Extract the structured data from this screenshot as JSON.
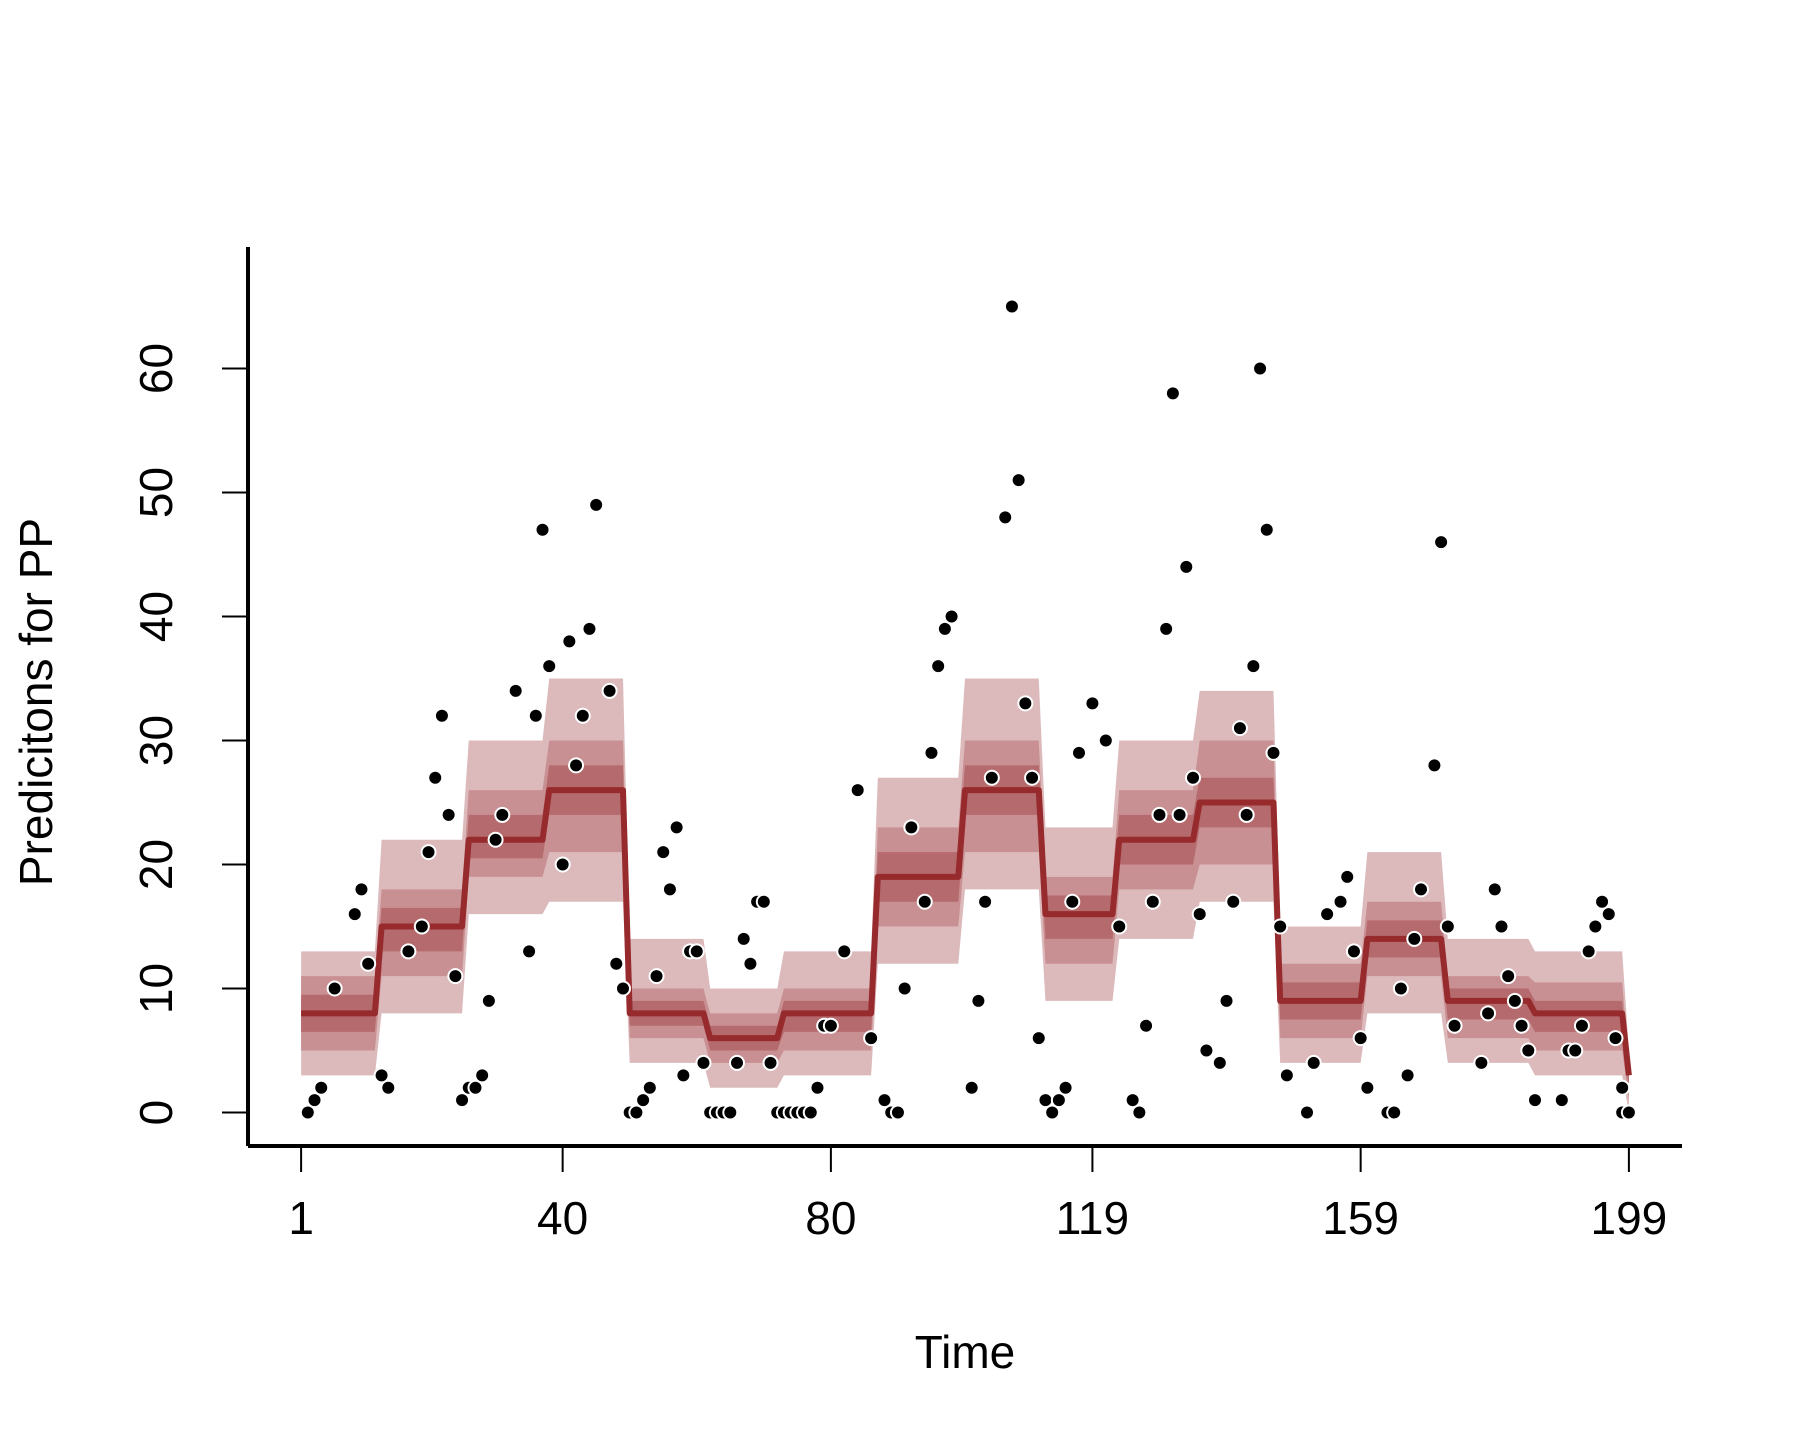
{
  "chart_data": {
    "type": "line",
    "xlabel": "Time",
    "ylabel": "Predicitons for PP",
    "xlim": [
      -6.92,
      206.92
    ],
    "ylim": [
      -2.7,
      69.8
    ],
    "xticks": [
      1,
      40,
      80,
      119,
      159,
      199
    ],
    "yticks": [
      0,
      10,
      20,
      30,
      40,
      50,
      60
    ],
    "line": {
      "color": "#962a2c",
      "x": [
        1,
        12,
        13,
        25,
        26,
        37,
        38,
        49,
        50,
        61,
        62,
        72,
        73,
        86,
        87,
        99,
        100,
        111,
        112,
        122,
        123,
        134,
        135,
        146,
        147,
        159,
        160,
        171,
        172,
        184,
        185,
        198,
        199
      ],
      "values": [
        8,
        8,
        15,
        15,
        22,
        22,
        26,
        26,
        8,
        8,
        6,
        6,
        8,
        8,
        19,
        19,
        26,
        26,
        16,
        16,
        22,
        22,
        25,
        25,
        9,
        9,
        14,
        14,
        9,
        9,
        8,
        8,
        3
      ]
    },
    "bands": [
      {
        "color": "#dcbabc",
        "lower": [
          3,
          3,
          8,
          8,
          16,
          16,
          17,
          17,
          4,
          4,
          2,
          2,
          3,
          3,
          12,
          12,
          18,
          18,
          9,
          9,
          14,
          14,
          17,
          17,
          4,
          4,
          8,
          8,
          4,
          4,
          3,
          3,
          0
        ],
        "upper": [
          13,
          13,
          22,
          22,
          30,
          30,
          35,
          35,
          14,
          14,
          10,
          10,
          13,
          13,
          27,
          27,
          35,
          35,
          23,
          23,
          30,
          30,
          34,
          34,
          15,
          15,
          21,
          21,
          14,
          14,
          13,
          13,
          5
        ]
      },
      {
        "color": "#c99093",
        "lower": [
          5,
          5,
          11,
          11,
          19,
          19,
          21,
          21,
          6,
          6,
          4,
          4,
          5,
          5,
          15,
          15,
          21,
          21,
          12,
          12,
          18,
          18,
          20,
          20,
          6,
          6,
          11,
          11,
          6,
          6,
          5,
          5,
          1
        ],
        "upper": [
          11,
          11,
          18,
          18,
          26,
          26,
          30,
          30,
          10,
          10,
          8,
          8,
          10,
          10,
          23,
          23,
          30,
          30,
          19,
          19,
          26,
          26,
          30,
          30,
          12,
          12,
          17,
          17,
          11,
          11,
          10.5,
          10.5,
          4
        ]
      },
      {
        "color": "#b56a6d",
        "lower": [
          6.5,
          6.5,
          13,
          13,
          20.5,
          20.5,
          24,
          24,
          7,
          7,
          5,
          5,
          6.5,
          6.5,
          17,
          17,
          24,
          24,
          14,
          14,
          20,
          20,
          23,
          23,
          7.5,
          7.5,
          12.5,
          12.5,
          7.5,
          7.5,
          6.5,
          6.5,
          2
        ],
        "upper": [
          9.5,
          9.5,
          16.5,
          16.5,
          24,
          24,
          28,
          28,
          9,
          9,
          7,
          7,
          9,
          9,
          21,
          21,
          28,
          28,
          17.5,
          17.5,
          24,
          24,
          27,
          27,
          10.5,
          10.5,
          15.5,
          15.5,
          10,
          10,
          9,
          9,
          3.5
        ]
      }
    ],
    "points": {
      "color": "#000000",
      "x": [
        2,
        3,
        4,
        6,
        9,
        10,
        11,
        13,
        14,
        17,
        19,
        20,
        21,
        22,
        23,
        24,
        25,
        26,
        27,
        28,
        29,
        30,
        31,
        33,
        35,
        36,
        37,
        38,
        40,
        41,
        42,
        43,
        44,
        45,
        47,
        48,
        49,
        50,
        51,
        52,
        53,
        54,
        55,
        56,
        57,
        58,
        59,
        60,
        61,
        62,
        63,
        64,
        65,
        66,
        67,
        68,
        69,
        70,
        71,
        72,
        73,
        74,
        75,
        76,
        77,
        78,
        79,
        80,
        82,
        84,
        86,
        88,
        89,
        90,
        91,
        92,
        94,
        95,
        96,
        97,
        98,
        101,
        102,
        103,
        104,
        106,
        107,
        108,
        109,
        110,
        111,
        112,
        113,
        114,
        115,
        116,
        117,
        119,
        121,
        123,
        125,
        126,
        127,
        128,
        129,
        130,
        131,
        132,
        133,
        134,
        135,
        136,
        138,
        139,
        140,
        141,
        142,
        143,
        144,
        145,
        146,
        147,
        148,
        151,
        152,
        154,
        156,
        157,
        158,
        159,
        160,
        163,
        164,
        165,
        166,
        167,
        168,
        170,
        171,
        172,
        173,
        177,
        178,
        179,
        180,
        181,
        182,
        183,
        184,
        185,
        189,
        190,
        191,
        192,
        193,
        194,
        195,
        196,
        197,
        198,
        198,
        199
      ],
      "values": [
        0,
        1,
        2,
        10,
        16,
        18,
        12,
        3,
        2,
        13,
        15,
        21,
        27,
        32,
        24,
        11,
        1,
        2,
        2,
        3,
        9,
        22,
        24,
        34,
        13,
        32,
        47,
        36,
        20,
        38,
        28,
        32,
        39,
        49,
        34,
        12,
        10,
        0,
        0,
        1,
        2,
        11,
        21,
        18,
        23,
        3,
        13,
        13,
        4,
        0,
        0,
        0,
        0,
        4,
        14,
        12,
        17,
        17,
        4,
        0,
        0,
        0,
        0,
        0,
        0,
        2,
        7,
        7,
        13,
        26,
        6,
        1,
        0,
        0,
        10,
        23,
        17,
        29,
        36,
        39,
        40,
        2,
        9,
        17,
        27,
        48,
        65,
        51,
        33,
        27,
        6,
        1,
        0,
        1,
        2,
        17,
        29,
        33,
        30,
        15,
        1,
        0,
        7,
        17,
        24,
        39,
        58,
        24,
        44,
        27,
        16,
        5,
        4,
        9,
        17,
        31,
        24,
        36,
        60,
        47,
        29,
        15,
        3,
        0,
        4,
        16,
        17,
        19,
        13,
        6,
        2,
        0,
        0,
        10,
        3,
        14,
        18,
        28,
        46,
        15,
        7,
        4,
        8,
        18,
        15,
        11,
        9,
        7,
        5,
        1,
        1,
        5,
        5,
        7,
        13,
        15,
        17,
        16,
        6,
        2,
        0,
        0
      ]
    }
  }
}
